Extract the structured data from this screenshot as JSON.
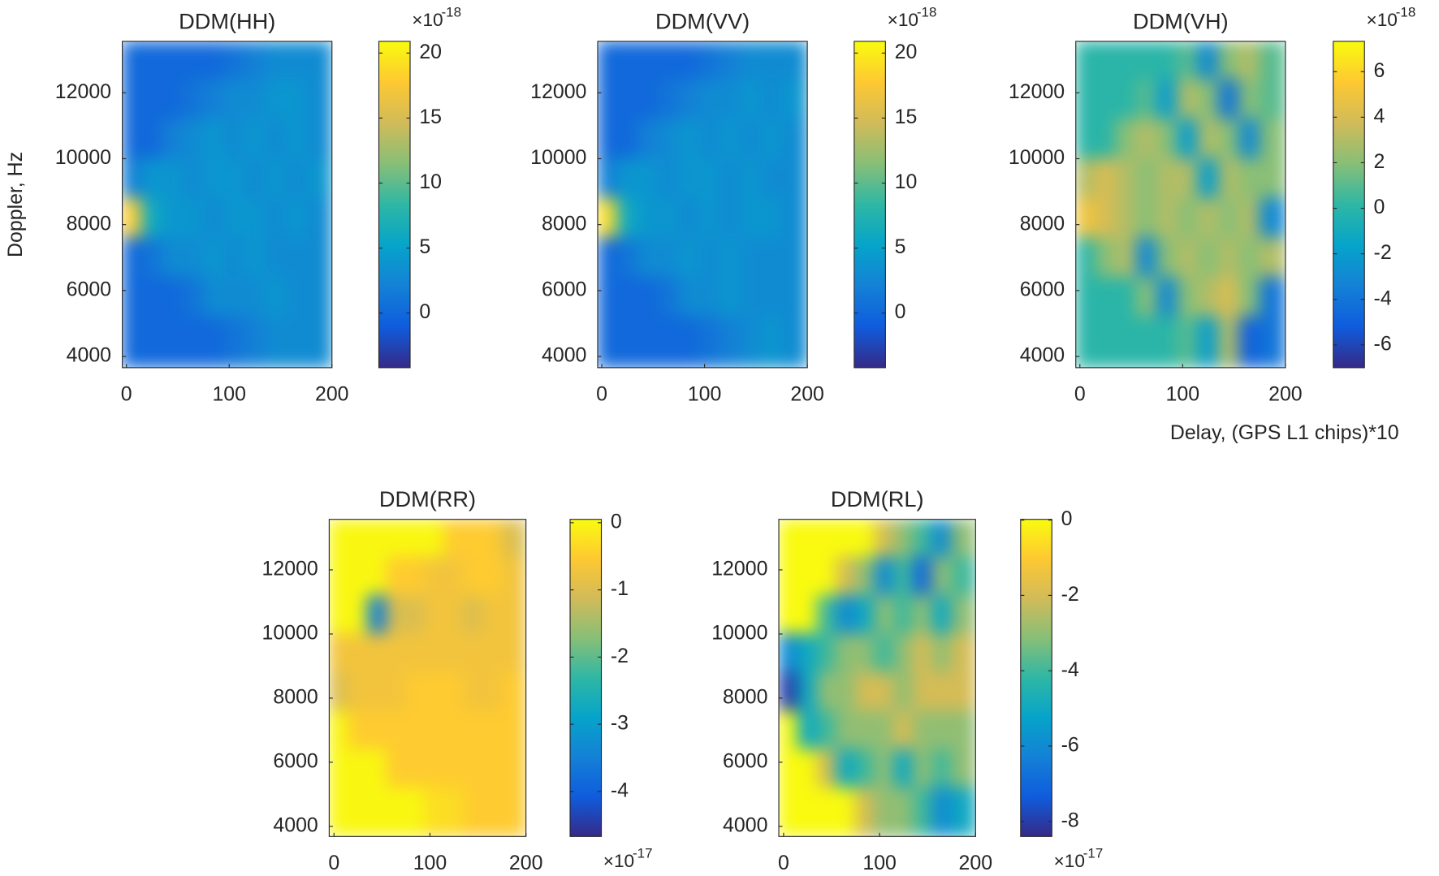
{
  "chart_data": [
    {
      "type": "heatmap",
      "title": "DDM(HH)",
      "ylabel": "Doppler, Hz",
      "colormap": "parula",
      "x": [
        5,
        25,
        45,
        65,
        85,
        105,
        125,
        145,
        165,
        185
      ],
      "y": [
        13000,
        11800,
        10600,
        9400,
        8200,
        7000,
        5800,
        4600
      ],
      "z": [
        [
          0,
          0,
          0,
          0,
          0,
          1,
          2,
          3,
          3,
          3
        ],
        [
          0,
          0,
          0,
          1,
          2,
          3,
          3,
          4,
          4,
          3
        ],
        [
          0,
          0,
          2,
          3,
          4,
          3,
          4,
          3,
          4,
          3
        ],
        [
          2,
          4,
          4,
          3,
          4,
          4,
          3,
          4,
          3,
          4
        ],
        [
          18,
          6,
          4,
          4,
          3,
          4,
          4,
          3,
          4,
          3
        ],
        [
          0,
          1,
          3,
          3,
          4,
          3,
          4,
          3,
          3,
          3
        ],
        [
          0,
          0,
          0,
          1,
          3,
          3,
          3,
          4,
          3,
          3
        ],
        [
          0,
          0,
          0,
          0,
          0,
          1,
          2,
          3,
          3,
          3
        ]
      ],
      "xlim": [
        -4,
        200
      ],
      "ylim": [
        3660,
        13560
      ],
      "xticks": [
        0,
        100,
        200
      ],
      "yticks": [
        4000,
        6000,
        8000,
        10000,
        12000
      ],
      "clim": [
        -4.2,
        20.9
      ],
      "cticks": [
        0,
        5,
        10,
        15,
        20
      ],
      "colorbar_scale": "×10",
      "colorbar_exponent": "-18"
    },
    {
      "type": "heatmap",
      "title": "DDM(VV)",
      "colormap": "parula",
      "x": [
        5,
        25,
        45,
        65,
        85,
        105,
        125,
        145,
        165,
        185
      ],
      "y": [
        13000,
        11800,
        10600,
        9400,
        8200,
        7000,
        5800,
        4600
      ],
      "z": [
        [
          0,
          0,
          0,
          0,
          0,
          1,
          2,
          3,
          3,
          3
        ],
        [
          0,
          0,
          0,
          1,
          2,
          3,
          3,
          4,
          3,
          4
        ],
        [
          0,
          0,
          2,
          3,
          4,
          3,
          4,
          3,
          4,
          3
        ],
        [
          2,
          4,
          4,
          3,
          4,
          4,
          3,
          4,
          3,
          3
        ],
        [
          19,
          6,
          4,
          4,
          3,
          4,
          3,
          4,
          4,
          3
        ],
        [
          0,
          1,
          3,
          3,
          4,
          3,
          4,
          3,
          3,
          3
        ],
        [
          0,
          0,
          0,
          1,
          3,
          3,
          4,
          3,
          3,
          3
        ],
        [
          0,
          0,
          0,
          0,
          0,
          1,
          2,
          3,
          4,
          3
        ]
      ],
      "xlim": [
        -4,
        200
      ],
      "ylim": [
        3660,
        13560
      ],
      "xticks": [
        0,
        100,
        200
      ],
      "yticks": [
        4000,
        6000,
        8000,
        10000,
        12000
      ],
      "clim": [
        -4.2,
        20.9
      ],
      "cticks": [
        0,
        5,
        10,
        15,
        20
      ],
      "colorbar_scale": "×10",
      "colorbar_exponent": "-18"
    },
    {
      "type": "heatmap",
      "title": "DDM(VH)",
      "xlabel": "Delay, (GPS L1 chips)*10",
      "colormap": "parula",
      "x": [
        5,
        25,
        45,
        65,
        85,
        105,
        125,
        145,
        165,
        185
      ],
      "y": [
        13000,
        11800,
        10600,
        9400,
        8200,
        7000,
        5800,
        4600
      ],
      "z": [
        [
          0,
          0,
          0,
          0,
          0,
          1,
          -3,
          2,
          3,
          1
        ],
        [
          0,
          0,
          0,
          1,
          -2,
          3,
          2,
          -4,
          2,
          1
        ],
        [
          0,
          0,
          2,
          3,
          2,
          -2,
          3,
          2,
          -3,
          2
        ],
        [
          3,
          4,
          3,
          2,
          3,
          3,
          -2,
          3,
          2,
          2
        ],
        [
          5,
          4,
          3,
          2,
          3,
          2,
          3,
          2,
          3,
          -3
        ],
        [
          0,
          2,
          3,
          -3,
          2,
          3,
          2,
          3,
          2,
          3
        ],
        [
          0,
          0,
          0,
          2,
          -3,
          2,
          3,
          4,
          2,
          -4
        ],
        [
          0,
          0,
          0,
          0,
          0,
          1,
          -2,
          3,
          -5,
          -4
        ]
      ],
      "xlim": [
        -4,
        200
      ],
      "ylim": [
        3660,
        13560
      ],
      "xticks": [
        0,
        100,
        200
      ],
      "yticks": [
        4000,
        6000,
        8000,
        10000,
        12000
      ],
      "clim": [
        -7,
        7.33
      ],
      "cticks": [
        -6,
        -4,
        -2,
        0,
        2,
        4,
        6
      ],
      "colorbar_scale": "×10",
      "colorbar_exponent": "-18"
    },
    {
      "type": "heatmap",
      "title": "DDM(RR)",
      "colormap": "parula",
      "x": [
        5,
        25,
        45,
        65,
        85,
        105,
        125,
        145,
        165,
        185
      ],
      "y": [
        13000,
        11800,
        10600,
        9400,
        8200,
        7000,
        5800,
        4600
      ],
      "z": [
        [
          0,
          0,
          0,
          0,
          0,
          0,
          -0.5,
          -0.5,
          -0.5,
          -1
        ],
        [
          0,
          0,
          0,
          -0.5,
          -0.5,
          -0.7,
          -0.7,
          -0.5,
          -0.5,
          -0.7
        ],
        [
          0,
          0,
          -3.5,
          -1,
          -1,
          -0.7,
          -0.7,
          -1,
          -0.7,
          -0.7
        ],
        [
          -0.7,
          -0.7,
          -0.7,
          -0.7,
          -0.7,
          -0.7,
          -0.7,
          -0.7,
          -0.7,
          -0.7
        ],
        [
          -1,
          -0.7,
          -0.7,
          -0.7,
          -0.5,
          -0.5,
          -0.5,
          -0.7,
          -0.7,
          -0.5
        ],
        [
          0,
          -0.5,
          -0.5,
          -0.5,
          -0.5,
          -0.5,
          -0.5,
          -0.5,
          -0.5,
          -0.5
        ],
        [
          0,
          0,
          0,
          -0.5,
          -0.5,
          -0.5,
          -0.5,
          -0.5,
          -0.5,
          -0.5
        ],
        [
          0,
          0,
          0,
          0,
          0,
          -0.3,
          -0.3,
          -0.5,
          -0.5,
          -0.5
        ]
      ],
      "xlim": [
        -5,
        200
      ],
      "ylim": [
        3685,
        13576
      ],
      "xticks": [
        0,
        100,
        200
      ],
      "yticks": [
        4000,
        6000,
        8000,
        10000,
        12000
      ],
      "clim": [
        -4.67,
        0.05
      ],
      "cticks": [
        -4,
        -3,
        -2,
        -1,
        0
      ],
      "colorbar_scale": "×10",
      "colorbar_exponent": "-17"
    },
    {
      "type": "heatmap",
      "title": "DDM(RL)",
      "colormap": "parula",
      "x": [
        5,
        25,
        45,
        65,
        85,
        105,
        125,
        145,
        165,
        185
      ],
      "y": [
        13000,
        11800,
        10600,
        9400,
        8200,
        7000,
        5800,
        4600
      ],
      "z": [
        [
          0,
          0,
          0,
          0,
          0,
          -2,
          -3,
          -4,
          -6,
          -3
        ],
        [
          0,
          0,
          0,
          -2,
          -3,
          -6,
          -4,
          -7,
          -3,
          -4
        ],
        [
          0,
          0,
          -4,
          -6,
          -5,
          -3,
          -4,
          -3,
          -5,
          -3
        ],
        [
          -6,
          -5,
          -4,
          -3,
          -3,
          -4,
          -3,
          -2,
          -3,
          -2
        ],
        [
          -8,
          -5,
          -3,
          -3,
          -2,
          -2,
          -3,
          -2,
          -2,
          -2
        ],
        [
          0,
          -5,
          -4,
          -3,
          -3,
          -3,
          -2,
          -3,
          -3,
          -3
        ],
        [
          0,
          0,
          -2,
          -5,
          -4,
          -3,
          -5,
          -3,
          -4,
          -3
        ],
        [
          0,
          0,
          0,
          0,
          -2,
          -3,
          -3,
          -4,
          -6,
          -5
        ]
      ],
      "xlim": [
        -5,
        200
      ],
      "ylim": [
        3685,
        13576
      ],
      "xticks": [
        0,
        100,
        200
      ],
      "yticks": [
        4000,
        6000,
        8000,
        10000,
        12000
      ],
      "clim": [
        -8.4,
        0.02
      ],
      "cticks": [
        -8,
        -6,
        -4,
        -2,
        0
      ],
      "colorbar_scale": "×10",
      "colorbar_exponent": "-17"
    }
  ]
}
